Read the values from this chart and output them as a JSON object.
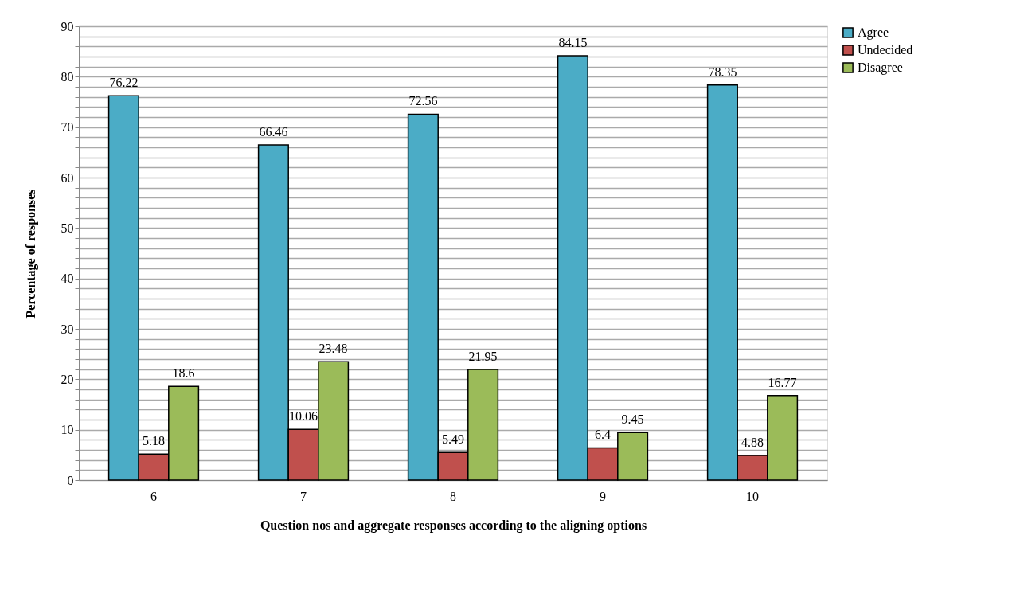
{
  "chart_data": {
    "type": "bar",
    "xlabel": "Question nos and aggregate responses according to the aligning options",
    "ylabel": "Percentage of responses",
    "categories": [
      "6",
      "7",
      "8",
      "9",
      "10"
    ],
    "series": [
      {
        "name": "Agree",
        "color": "#4bacc6",
        "values": [
          76.22,
          66.46,
          72.56,
          84.15,
          78.35
        ]
      },
      {
        "name": "Undecided",
        "color": "#c0504d",
        "values": [
          5.18,
          10.06,
          5.49,
          6.4,
          4.88
        ]
      },
      {
        "name": "Disagree",
        "color": "#9bbb59",
        "values": [
          18.6,
          23.48,
          21.95,
          9.45,
          16.77
        ]
      }
    ],
    "ylim": [
      0,
      90
    ],
    "yticks": [
      0,
      {
        "value": 2,
        "label": null
      },
      {
        "value": 4,
        "label": null
      },
      {
        "value": 6,
        "label": null
      },
      {
        "value": 8,
        "label": null
      },
      10,
      {
        "value": 12,
        "label": null
      },
      {
        "value": 14,
        "label": null
      },
      {
        "value": 16,
        "label": null
      },
      {
        "value": 18,
        "label": null
      },
      20,
      {
        "value": 22,
        "label": null
      },
      {
        "value": 24,
        "label": null
      },
      {
        "value": 26,
        "label": null
      },
      {
        "value": 28,
        "label": null
      },
      30,
      {
        "value": 32,
        "label": null
      },
      {
        "value": 34,
        "label": null
      },
      {
        "value": 36,
        "label": null
      },
      {
        "value": 38,
        "label": null
      },
      40,
      {
        "value": 42,
        "label": null
      },
      {
        "value": 44,
        "label": null
      },
      {
        "value": 46,
        "label": null
      },
      {
        "value": 48,
        "label": null
      },
      50,
      {
        "value": 52,
        "label": null
      },
      {
        "value": 54,
        "label": null
      },
      {
        "value": 56,
        "label": null
      },
      {
        "value": 58,
        "label": null
      },
      60,
      {
        "value": 62,
        "label": null
      },
      {
        "value": 64,
        "label": null
      },
      {
        "value": 66,
        "label": null
      },
      {
        "value": 68,
        "label": null
      },
      70,
      {
        "value": 72,
        "label": null
      },
      {
        "value": 74,
        "label": null
      },
      {
        "value": 76,
        "label": null
      },
      {
        "value": 78,
        "label": null
      },
      80,
      {
        "value": 82,
        "label": null
      },
      {
        "value": 84,
        "label": null
      },
      {
        "value": 86,
        "label": null
      },
      {
        "value": 88,
        "label": null
      },
      90
    ],
    "grid": "y",
    "legend": "right",
    "data_labels": true
  }
}
